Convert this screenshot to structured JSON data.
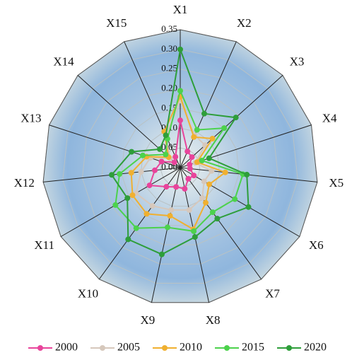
{
  "chart_data": {
    "type": "radar",
    "categories": [
      "X1",
      "X2",
      "X3",
      "X4",
      "X5",
      "X6",
      "X7",
      "X8",
      "X9",
      "X10",
      "X11",
      "X12",
      "X13",
      "X14",
      "X15"
    ],
    "ylim": [
      0,
      0.35
    ],
    "yticks": [
      {
        "value": 0,
        "label": "0.00"
      },
      {
        "value": 0.05,
        "label": "0.05"
      },
      {
        "value": 0.1,
        "label": "0.10"
      },
      {
        "value": 0.15,
        "label": "0.15"
      },
      {
        "value": 0.2,
        "label": "0.20"
      },
      {
        "value": 0.25,
        "label": "0.25"
      },
      {
        "value": 0.3,
        "label": "0.30"
      },
      {
        "value": 0.35,
        "label": "0.35"
      }
    ],
    "grid": true,
    "legend": "bottom",
    "series": [
      {
        "name": "2000",
        "color": "#e8449b",
        "values": [
          0.12,
          0.045,
          0.04,
          0.025,
          0.025,
          0.04,
          0.035,
          0.055,
          0.05,
          0.06,
          0.09,
          0.065,
          0.05,
          0.02,
          0.03
        ]
      },
      {
        "name": "2005",
        "color": "#d6c8bc",
        "values": [
          0.17,
          0.09,
          0.085,
          0.04,
          0.08,
          0.07,
          0.095,
          0.11,
          0.11,
          0.12,
          0.13,
          0.1,
          0.08,
          0.035,
          0.09
        ]
      },
      {
        "name": "2010",
        "color": "#f0b030",
        "values": [
          0.18,
          0.085,
          0.11,
          0.045,
          0.115,
          0.085,
          0.11,
          0.16,
          0.125,
          0.145,
          0.14,
          0.125,
          0.09,
          0.04,
          0.1
        ]
      },
      {
        "name": "2015",
        "color": "#4cd24c",
        "values": [
          0.195,
          0.105,
          0.15,
          0.058,
          0.16,
          0.16,
          0.14,
          0.165,
          0.155,
          0.19,
          0.19,
          0.155,
          0.1,
          0.05,
          0.08
        ]
      },
      {
        "name": "2020",
        "color": "#2e9e3a",
        "values": [
          0.3,
          0.15,
          0.19,
          0.077,
          0.17,
          0.2,
          0.16,
          0.18,
          0.225,
          0.225,
          0.155,
          0.175,
          0.13,
          0.07,
          0.09
        ]
      }
    ]
  }
}
